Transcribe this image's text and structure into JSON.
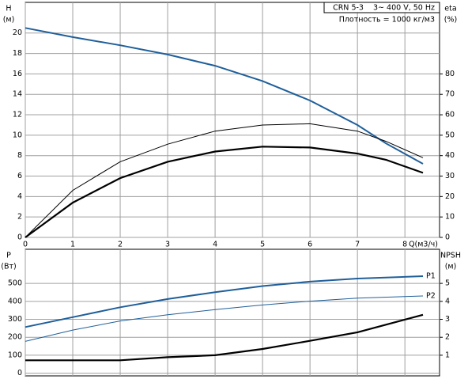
{
  "chart_data": [
    {
      "type": "line",
      "legend_lines": [
        "CRN 5-3    3~ 400 V, 50 Hz",
        "Плотность = 1000 кг/м3"
      ],
      "xlabel": "Q(м3/ч)",
      "ylabel": [
        "H",
        "(м)"
      ],
      "y2label": [
        "eta",
        "(%)"
      ],
      "xlim": [
        0,
        8.73
      ],
      "xticks": [
        0,
        1,
        2,
        3,
        4,
        5,
        6,
        7,
        8
      ],
      "ylim": [
        0,
        23
      ],
      "yticks": [
        0,
        2,
        4,
        6,
        8,
        10,
        12,
        14,
        16,
        18,
        20
      ],
      "y2lim": [
        0,
        115
      ],
      "y2ticks": [
        0,
        10,
        20,
        30,
        40,
        50,
        60,
        70,
        80
      ],
      "grid": true,
      "x": [
        0,
        1,
        2,
        3,
        4,
        5,
        6,
        7,
        7.6,
        8.38
      ],
      "series": [
        {
          "color": "#1f5f9a",
          "width": 2,
          "values": [
            20.5,
            19.6,
            18.8,
            17.9,
            16.8,
            15.3,
            13.4,
            11,
            9.2,
            7.2
          ]
        },
        {
          "color": "#000000",
          "width": 1,
          "axis": "y2",
          "values": [
            0,
            23,
            37,
            45.6,
            52,
            55,
            55.6,
            52,
            47,
            39
          ]
        },
        {
          "color": "#000000",
          "width": 2.2,
          "axis": "y2",
          "values": [
            0,
            17,
            29,
            37,
            42,
            44.4,
            44,
            41,
            38,
            31.6
          ]
        }
      ]
    },
    {
      "type": "line",
      "ylabel": [
        "P",
        "(Вт)"
      ],
      "y2label": [
        "NPSH",
        "(м)"
      ],
      "xlim": [
        0,
        8.73
      ],
      "ylim": [
        -15,
        690
      ],
      "yticks": [
        0,
        100,
        200,
        300,
        400,
        500
      ],
      "y2lim": [
        -0.15,
        6.9
      ],
      "y2ticks": [
        1,
        2,
        3,
        4,
        5
      ],
      "grid": true,
      "x": [
        0,
        1,
        2,
        3,
        4,
        5,
        6,
        7,
        8.38
      ],
      "series": [
        {
          "name": "P1",
          "color": "#1f5f9a",
          "width": 2,
          "values": [
            257,
            312,
            367,
            413,
            451,
            485,
            510,
            527,
            540
          ]
        },
        {
          "name": "P2",
          "color": "#1f5f9a",
          "width": 1,
          "values": [
            177,
            240,
            291,
            325,
            354,
            380,
            401,
            418,
            430
          ]
        },
        {
          "color": "#000000",
          "width": 2.2,
          "axis": "y2",
          "values": [
            0.72,
            0.72,
            0.72,
            0.89,
            1.0,
            1.35,
            1.8,
            2.28,
            3.25
          ]
        }
      ]
    }
  ]
}
